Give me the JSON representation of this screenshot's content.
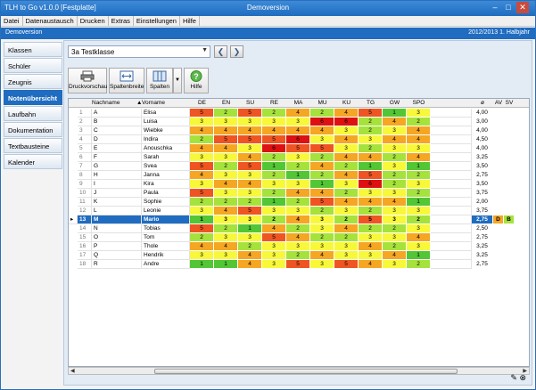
{
  "title": {
    "left": "TLH to Go v1.0.0 [Festplatte]",
    "center": "Demoversion"
  },
  "window_buttons": {
    "minimize": "–",
    "maximize": "□",
    "close": "✕"
  },
  "menu": [
    "Datei",
    "Datenaustausch",
    "Drucken",
    "Extras",
    "Einstellungen",
    "Hilfe"
  ],
  "bluebar": {
    "left": "Demoversion",
    "right": "2012/2013 1. Halbjahr"
  },
  "sidebar": [
    "Klassen",
    "Schüler",
    "Zeugnis",
    "Notenübersicht",
    "Laufbahn",
    "Dokumentation",
    "Textbausteine",
    "Kalender"
  ],
  "class_select": "3a Testklasse",
  "nav": {
    "prev": "❮",
    "next": "❯"
  },
  "toolbar": {
    "print": "Druckvorschau",
    "width": "Spaltenbreite",
    "columns": "Spalten",
    "help": "Hilfe"
  },
  "columns": {
    "nachname": "Nachname",
    "vorname": "Vorname",
    "subjects": [
      "DE",
      "EN",
      "SU",
      "RE",
      "MA",
      "MU",
      "KU",
      "TG",
      "GW",
      "SPO"
    ],
    "avg": "ø",
    "av": "AV",
    "sv": "SV"
  },
  "colors": {
    "1": "#52c634",
    "2": "#a6e23c",
    "3": "#f8f83a",
    "4": "#f5a623",
    "5": "#ee5522",
    "6": "#dd1111",
    "sel": "#1f6cc0"
  },
  "rows": [
    {
      "n": "1",
      "ln": "A",
      "fn": "Elisa",
      "g": [
        "5",
        "2",
        "5",
        "2",
        "4",
        "2",
        "4",
        "5",
        "1",
        "3"
      ],
      "avg": "4,00",
      "av": "",
      "sv": ""
    },
    {
      "n": "2",
      "ln": "B",
      "fn": "Luisa",
      "g": [
        "3",
        "3",
        "3",
        "3",
        "3",
        "6",
        "6",
        "2",
        "4",
        "2"
      ],
      "avg": "3,00",
      "av": "",
      "sv": ""
    },
    {
      "n": "3",
      "ln": "C",
      "fn": "Wiebke",
      "g": [
        "4",
        "4",
        "4",
        "4",
        "4",
        "4",
        "3",
        "2",
        "3",
        "4"
      ],
      "avg": "4,00",
      "av": "",
      "sv": ""
    },
    {
      "n": "4",
      "ln": "D",
      "fn": "Indira",
      "g": [
        "2",
        "5",
        "5",
        "5",
        "6",
        "3",
        "4",
        "3",
        "4",
        "4"
      ],
      "avg": "4,50",
      "av": "",
      "sv": ""
    },
    {
      "n": "5",
      "ln": "E",
      "fn": "Anouschka",
      "g": [
        "4",
        "4",
        "3",
        "6",
        "5",
        "5",
        "3",
        "2",
        "3",
        "3"
      ],
      "avg": "4,00",
      "av": "",
      "sv": ""
    },
    {
      "n": "6",
      "ln": "F",
      "fn": "Sarah",
      "g": [
        "3",
        "3",
        "4",
        "2",
        "3",
        "2",
        "4",
        "4",
        "2",
        "4"
      ],
      "avg": "3,25",
      "av": "",
      "sv": ""
    },
    {
      "n": "7",
      "ln": "G",
      "fn": "Svea",
      "g": [
        "5",
        "2",
        "5",
        "1",
        "2",
        "4",
        "2",
        "1",
        "3",
        "1"
      ],
      "avg": "3,50",
      "av": "",
      "sv": ""
    },
    {
      "n": "8",
      "ln": "H",
      "fn": "Janna",
      "g": [
        "4",
        "3",
        "3",
        "2",
        "1",
        "2",
        "4",
        "5",
        "2",
        "2"
      ],
      "avg": "2,75",
      "av": "",
      "sv": ""
    },
    {
      "n": "9",
      "ln": "I",
      "fn": "Kira",
      "g": [
        "3",
        "4",
        "4",
        "3",
        "3",
        "1",
        "3",
        "6",
        "2",
        "3"
      ],
      "avg": "3,50",
      "av": "",
      "sv": ""
    },
    {
      "n": "10",
      "ln": "J",
      "fn": "Paula",
      "g": [
        "5",
        "3",
        "3",
        "2",
        "4",
        "4",
        "2",
        "3",
        "3",
        "2"
      ],
      "avg": "3,75",
      "av": "",
      "sv": ""
    },
    {
      "n": "11",
      "ln": "K",
      "fn": "Sophie",
      "g": [
        "2",
        "2",
        "2",
        "1",
        "2",
        "5",
        "4",
        "4",
        "4",
        "1"
      ],
      "avg": "2,00",
      "av": "",
      "sv": ""
    },
    {
      "n": "12",
      "ln": "L",
      "fn": "Leonie",
      "g": [
        "3",
        "4",
        "5",
        "3",
        "3",
        "2",
        "3",
        "2",
        "3",
        "3"
      ],
      "avg": "3,75",
      "av": "",
      "sv": ""
    },
    {
      "n": "13",
      "ln": "M",
      "fn": "Mario",
      "g": [
        "1",
        "3",
        "3",
        "2",
        "4",
        "3",
        "2",
        "5",
        "3",
        "2"
      ],
      "avg": "2,75",
      "av": "D",
      "sv": "B",
      "selected": true
    },
    {
      "n": "14",
      "ln": "N",
      "fn": "Tobias",
      "g": [
        "5",
        "2",
        "1",
        "4",
        "2",
        "3",
        "4",
        "2",
        "2",
        "3"
      ],
      "avg": "2,50",
      "av": "",
      "sv": ""
    },
    {
      "n": "15",
      "ln": "O",
      "fn": "Tom",
      "g": [
        "2",
        "3",
        "3",
        "5",
        "4",
        "2",
        "2",
        "3",
        "3",
        "4"
      ],
      "avg": "2,75",
      "av": "",
      "sv": ""
    },
    {
      "n": "16",
      "ln": "P",
      "fn": "Thole",
      "g": [
        "4",
        "4",
        "2",
        "3",
        "3",
        "3",
        "3",
        "4",
        "2",
        "3"
      ],
      "avg": "3,25",
      "av": "",
      "sv": ""
    },
    {
      "n": "17",
      "ln": "Q",
      "fn": "Hendrik",
      "g": [
        "3",
        "3",
        "4",
        "3",
        "2",
        "4",
        "3",
        "3",
        "4",
        "1"
      ],
      "avg": "3,25",
      "av": "",
      "sv": ""
    },
    {
      "n": "18",
      "ln": "R",
      "fn": "Andre",
      "g": [
        "1",
        "1",
        "4",
        "3",
        "5",
        "3",
        "5",
        "4",
        "3",
        "2"
      ],
      "avg": "2,75",
      "av": "",
      "sv": ""
    }
  ],
  "footer": {
    "edit": "✎",
    "delete": "⊗"
  }
}
